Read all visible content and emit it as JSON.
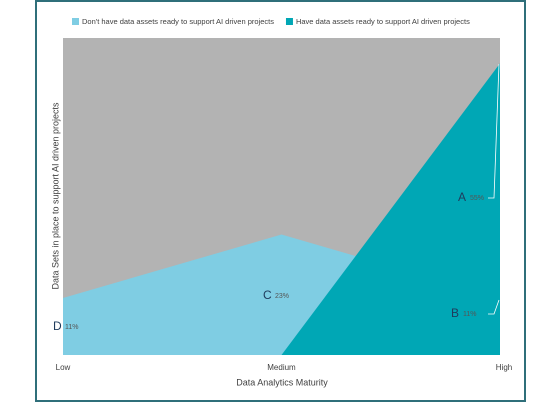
{
  "chart_data": {
    "type": "area",
    "x_label": "Data Analytics Maturity",
    "y_label": "Data Sets in place to support AI driven projects",
    "categories": [
      "Low",
      "Medium",
      "High"
    ],
    "ylim": [
      0,
      100
    ],
    "background_color": "#b3b3b3",
    "series": [
      {
        "name": "Don't have data assets ready to support AI driven projects",
        "color": "#7fcde3",
        "values": [
          18,
          38,
          18
        ]
      },
      {
        "name": "Have data assets ready to support AI driven projects",
        "color": "#00a7b5",
        "values": [
          null,
          0,
          92
        ]
      }
    ],
    "annotations": [
      {
        "letter": "A",
        "text": "55%"
      },
      {
        "letter": "B",
        "text": "11%"
      },
      {
        "letter": "C",
        "text": "23%"
      },
      {
        "letter": "D",
        "text": "11%"
      }
    ]
  }
}
